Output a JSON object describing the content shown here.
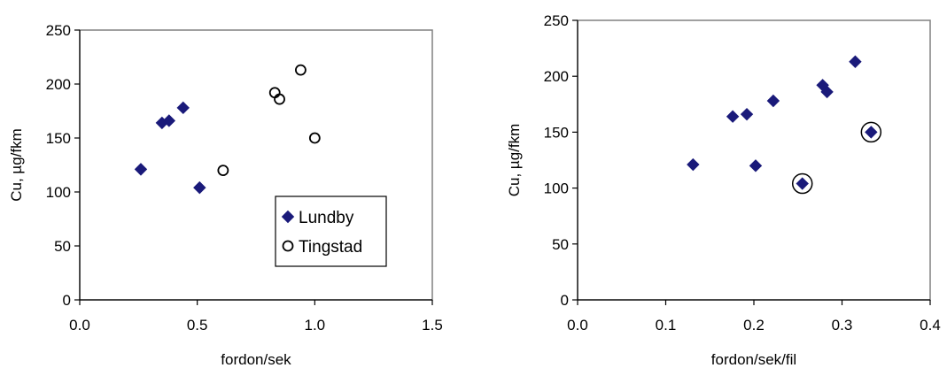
{
  "chart_data": [
    {
      "type": "scatter",
      "title": "",
      "xlabel": "fordon/sek",
      "ylabel": "Cu, µg/fkm",
      "xlim": [
        0,
        1.5
      ],
      "ylim": [
        0,
        250
      ],
      "xticks": [
        "0.0",
        "0.5",
        "1.0",
        "1.5"
      ],
      "yticks": [
        "0",
        "50",
        "100",
        "150",
        "200",
        "250"
      ],
      "grid": false,
      "legend": "bottom-right",
      "series": [
        {
          "name": "Lundby",
          "marker": "diamond-filled",
          "color": "#1a1a7a",
          "points": [
            [
              0.26,
              121
            ],
            [
              0.35,
              164
            ],
            [
              0.38,
              166
            ],
            [
              0.44,
              178
            ],
            [
              0.51,
              104
            ]
          ]
        },
        {
          "name": "Tingstad",
          "marker": "circle-open",
          "color": "#000000",
          "points": [
            [
              0.61,
              120
            ],
            [
              0.83,
              192
            ],
            [
              0.85,
              186
            ],
            [
              0.94,
              213
            ],
            [
              1.0,
              150
            ]
          ]
        }
      ]
    },
    {
      "type": "scatter",
      "title": "",
      "xlabel": "fordon/sek/fil",
      "ylabel": "Cu, µg/fkm",
      "xlim": [
        0,
        0.4
      ],
      "ylim": [
        0,
        250
      ],
      "xticks": [
        "0.0",
        "0.1",
        "0.2",
        "0.3",
        "0.4"
      ],
      "yticks": [
        "0",
        "50",
        "100",
        "150",
        "200",
        "250"
      ],
      "grid": false,
      "series": [
        {
          "marker": "diamond-filled",
          "color": "#1a1a7a",
          "points": [
            [
              0.131,
              121
            ],
            [
              0.176,
              164
            ],
            [
              0.192,
              166
            ],
            [
              0.202,
              120
            ],
            [
              0.222,
              178
            ],
            [
              0.255,
              104
            ],
            [
              0.278,
              192
            ],
            [
              0.283,
              186
            ],
            [
              0.315,
              213
            ],
            [
              0.333,
              150
            ]
          ]
        }
      ],
      "highlighted_points": [
        [
          0.255,
          104
        ],
        [
          0.333,
          150
        ]
      ]
    }
  ]
}
